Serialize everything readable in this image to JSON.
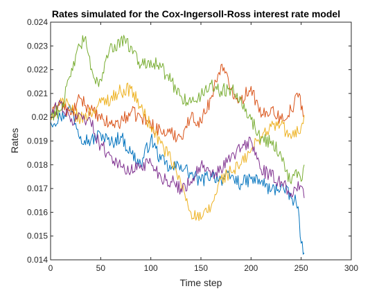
{
  "chart_data": {
    "type": "line",
    "title": "Rates simulated for the Cox-Ingersoll-Ross interest rate model",
    "xlabel": "Time step",
    "ylabel": "Rates",
    "xlim": [
      0,
      300
    ],
    "ylim": [
      0.014,
      0.024
    ],
    "xticks": [
      "0",
      "50",
      "100",
      "150",
      "200",
      "250",
      "300"
    ],
    "yticks": [
      "0.014",
      "0.015",
      "0.016",
      "0.017",
      "0.018",
      "0.019",
      "0.02",
      "0.021",
      "0.022",
      "0.023",
      "0.024"
    ],
    "grid": false,
    "box": true,
    "series": [
      {
        "color": "#0072BD",
        "points": [
          [
            0,
            0.0198
          ],
          [
            10,
            0.02
          ],
          [
            20,
            0.0204
          ],
          [
            30,
            0.0192
          ],
          [
            40,
            0.019
          ],
          [
            50,
            0.0193
          ],
          [
            60,
            0.0189
          ],
          [
            70,
            0.0192
          ],
          [
            80,
            0.0185
          ],
          [
            90,
            0.018
          ],
          [
            100,
            0.0191
          ],
          [
            110,
            0.0182
          ],
          [
            120,
            0.0178
          ],
          [
            130,
            0.018
          ],
          [
            140,
            0.0176
          ],
          [
            150,
            0.0173
          ],
          [
            160,
            0.0176
          ],
          [
            170,
            0.0174
          ],
          [
            180,
            0.0175
          ],
          [
            190,
            0.0172
          ],
          [
            200,
            0.0174
          ],
          [
            210,
            0.0173
          ],
          [
            220,
            0.0169
          ],
          [
            230,
            0.0171
          ],
          [
            240,
            0.0166
          ],
          [
            245,
            0.0164
          ],
          [
            248,
            0.0158
          ],
          [
            250,
            0.0147
          ],
          [
            253,
            0.0143
          ]
        ]
      },
      {
        "color": "#D95319",
        "points": [
          [
            0,
            0.02
          ],
          [
            10,
            0.0206
          ],
          [
            20,
            0.0201
          ],
          [
            30,
            0.0208
          ],
          [
            40,
            0.0203
          ],
          [
            50,
            0.0199
          ],
          [
            60,
            0.0197
          ],
          [
            70,
            0.0198
          ],
          [
            80,
            0.0202
          ],
          [
            90,
            0.02
          ],
          [
            100,
            0.0197
          ],
          [
            110,
            0.0194
          ],
          [
            120,
            0.0193
          ],
          [
            130,
            0.0192
          ],
          [
            140,
            0.02
          ],
          [
            150,
            0.0198
          ],
          [
            160,
            0.0208
          ],
          [
            165,
            0.0215
          ],
          [
            170,
            0.0222
          ],
          [
            180,
            0.0212
          ],
          [
            190,
            0.0207
          ],
          [
            200,
            0.0213
          ],
          [
            210,
            0.02
          ],
          [
            220,
            0.0204
          ],
          [
            230,
            0.0199
          ],
          [
            240,
            0.0203
          ],
          [
            248,
            0.021
          ],
          [
            253,
            0.02
          ]
        ]
      },
      {
        "color": "#EDB120",
        "points": [
          [
            0,
            0.0199
          ],
          [
            10,
            0.0208
          ],
          [
            20,
            0.0203
          ],
          [
            30,
            0.0199
          ],
          [
            40,
            0.0202
          ],
          [
            50,
            0.0206
          ],
          [
            60,
            0.0208
          ],
          [
            70,
            0.0211
          ],
          [
            80,
            0.0212
          ],
          [
            90,
            0.0204
          ],
          [
            100,
            0.0196
          ],
          [
            110,
            0.0189
          ],
          [
            120,
            0.0182
          ],
          [
            130,
            0.0172
          ],
          [
            140,
            0.016
          ],
          [
            150,
            0.0157
          ],
          [
            160,
            0.0162
          ],
          [
            170,
            0.0174
          ],
          [
            180,
            0.0177
          ],
          [
            190,
            0.018
          ],
          [
            200,
            0.0186
          ],
          [
            210,
            0.0192
          ],
          [
            220,
            0.0196
          ],
          [
            230,
            0.0197
          ],
          [
            240,
            0.0191
          ],
          [
            250,
            0.0196
          ],
          [
            253,
            0.0201
          ]
        ]
      },
      {
        "color": "#7E2F8E",
        "points": [
          [
            0,
            0.0201
          ],
          [
            10,
            0.0206
          ],
          [
            20,
            0.0198
          ],
          [
            30,
            0.0201
          ],
          [
            40,
            0.0198
          ],
          [
            50,
            0.0188
          ],
          [
            60,
            0.0184
          ],
          [
            70,
            0.0179
          ],
          [
            80,
            0.0177
          ],
          [
            90,
            0.018
          ],
          [
            100,
            0.0181
          ],
          [
            110,
            0.0175
          ],
          [
            120,
            0.0173
          ],
          [
            130,
            0.017
          ],
          [
            140,
            0.0173
          ],
          [
            150,
            0.018
          ],
          [
            160,
            0.0175
          ],
          [
            170,
            0.0178
          ],
          [
            180,
            0.0183
          ],
          [
            190,
            0.0187
          ],
          [
            200,
            0.019
          ],
          [
            210,
            0.0178
          ],
          [
            220,
            0.0175
          ],
          [
            230,
            0.0173
          ],
          [
            240,
            0.0168
          ],
          [
            250,
            0.0171
          ],
          [
            253,
            0.0166
          ]
        ]
      },
      {
        "color": "#77AC30",
        "points": [
          [
            0,
            0.0201
          ],
          [
            10,
            0.0203
          ],
          [
            20,
            0.0217
          ],
          [
            25,
            0.0226
          ],
          [
            30,
            0.023
          ],
          [
            35,
            0.0234
          ],
          [
            40,
            0.022
          ],
          [
            45,
            0.0214
          ],
          [
            50,
            0.0216
          ],
          [
            55,
            0.0224
          ],
          [
            60,
            0.0231
          ],
          [
            65,
            0.0228
          ],
          [
            70,
            0.0233
          ],
          [
            75,
            0.0231
          ],
          [
            80,
            0.023
          ],
          [
            90,
            0.0222
          ],
          [
            100,
            0.0224
          ],
          [
            110,
            0.0221
          ],
          [
            120,
            0.0215
          ],
          [
            130,
            0.0209
          ],
          [
            140,
            0.0206
          ],
          [
            150,
            0.0209
          ],
          [
            160,
            0.0214
          ],
          [
            170,
            0.0211
          ],
          [
            180,
            0.0212
          ],
          [
            190,
            0.0208
          ],
          [
            200,
            0.0199
          ],
          [
            210,
            0.0191
          ],
          [
            220,
            0.019
          ],
          [
            230,
            0.0184
          ],
          [
            240,
            0.0172
          ],
          [
            245,
            0.0178
          ],
          [
            250,
            0.0173
          ],
          [
            253,
            0.018
          ]
        ]
      }
    ]
  }
}
